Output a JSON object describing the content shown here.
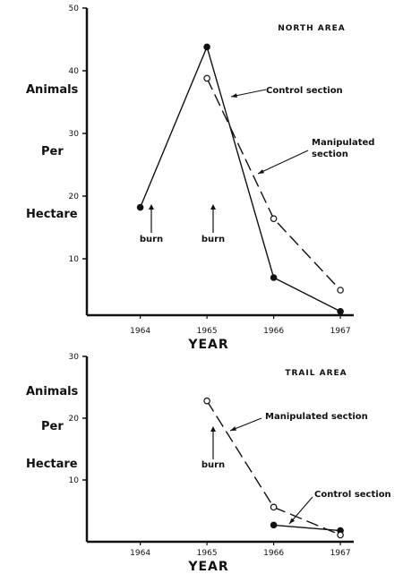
{
  "chart_data": [
    {
      "type": "line",
      "title": "NORTH AREA",
      "ylabel_lines": [
        "Animals",
        "Per",
        "Hectare"
      ],
      "xlabel": "YEAR",
      "x_ticks": [
        "1964",
        "1965",
        "1966",
        "1967"
      ],
      "y_ticks": [
        "10",
        "20",
        "30",
        "40",
        "50"
      ],
      "xlim": [
        1963.2,
        1967.2
      ],
      "ylim": [
        1,
        50
      ],
      "grid": false,
      "series": [
        {
          "name": "Control section",
          "style": "solid",
          "marker": "filled-circle",
          "x": [
            1964,
            1965,
            1966,
            1967
          ],
          "y": [
            18.2,
            43.8,
            7.0,
            1.6
          ]
        },
        {
          "name": "Manipulated section",
          "style": "dashed",
          "marker": "open-circle",
          "x": [
            1965,
            1966,
            1967
          ],
          "y": [
            38.8,
            16.4,
            5.0
          ]
        }
      ],
      "annotations": [
        {
          "text": "Control section",
          "target_series": 1,
          "target_x": 1965.2
        },
        {
          "text": "Manipulated\nsection",
          "target_series": 1,
          "target_x": 1965.5
        },
        {
          "text": "burn",
          "arrow_at_x": 1964
        },
        {
          "text": "burn",
          "arrow_at_x": 1965
        }
      ]
    },
    {
      "type": "line",
      "title": "TRAIL AREA",
      "ylabel_lines": [
        "Animals",
        "Per",
        "Hectare"
      ],
      "xlabel": "YEAR",
      "x_ticks": [
        "1964",
        "1965",
        "1966",
        "1967"
      ],
      "y_ticks": [
        "10",
        "20",
        "30"
      ],
      "xlim": [
        1963.2,
        1967.2
      ],
      "ylim": [
        0,
        30
      ],
      "grid": false,
      "series": [
        {
          "name": "Control section",
          "style": "solid",
          "marker": "filled-circle",
          "x": [
            1966,
            1967
          ],
          "y": [
            2.7,
            1.8
          ]
        },
        {
          "name": "Manipulated section",
          "style": "dashed",
          "marker": "open-circle",
          "x": [
            1965,
            1966,
            1967
          ],
          "y": [
            22.8,
            5.6,
            1.1
          ]
        }
      ],
      "annotations": [
        {
          "text": "Manipulated section",
          "target_series": 1,
          "target_x": 1965.2
        },
        {
          "text": "Control section",
          "target_series": 0,
          "target_x": 1966.2
        },
        {
          "text": "burn",
          "arrow_at_x": 1965
        }
      ]
    }
  ],
  "colors": {
    "ink": "#111111",
    "background": "#ffffff"
  }
}
